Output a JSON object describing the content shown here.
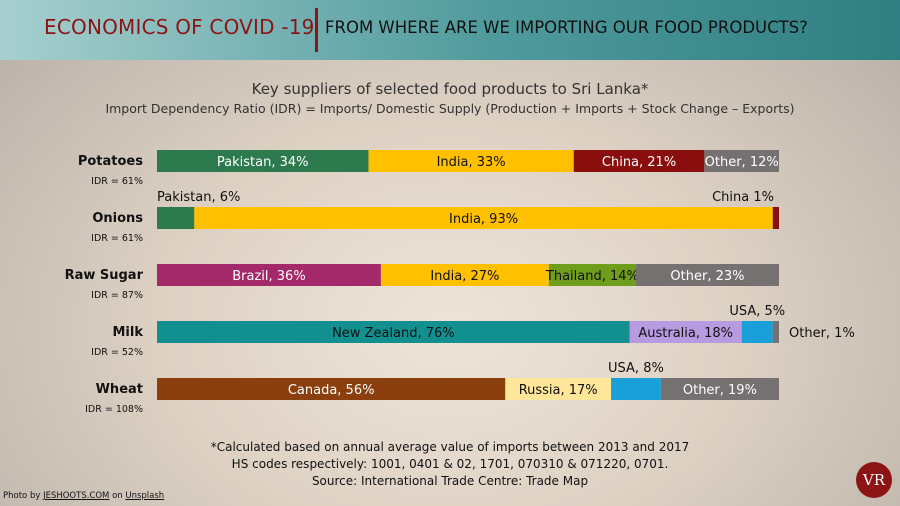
{
  "header": {
    "left_title": "ECONOMICS OF COVID -19",
    "right_title": "FROM WHERE ARE WE IMPORTING OUR FOOD PRODUCTS?"
  },
  "chart_data": {
    "type": "bar",
    "orientation": "horizontal",
    "stacked": true,
    "title": "Key suppliers of selected food products to Sri Lanka*",
    "subtitle": "Import Dependency Ratio (IDR) = Imports/ Domestic Supply (Production + Imports + Stock Change – Exports)",
    "categories": [
      "Potatoes",
      "Onions",
      "Raw Sugar",
      "Milk",
      "Wheat"
    ],
    "idr_labels": [
      "IDR = 61%",
      "IDR = 61%",
      "IDR = 87%",
      "IDR = 52%",
      "IDR = 108%"
    ],
    "rows": [
      {
        "category": "Potatoes",
        "segments": [
          {
            "label": "Pakistan, 34%",
            "value": 34,
            "color": "#2d7a4f"
          },
          {
            "label": "India, 33%",
            "value": 33,
            "color": "#ffc000"
          },
          {
            "label": "China, 21%",
            "value": 21,
            "color": "#8b0e0e"
          },
          {
            "label": "Other, 12%",
            "value": 12,
            "color": "#767171"
          }
        ]
      },
      {
        "category": "Onions",
        "segments": [
          {
            "label": "Pakistan, 6%",
            "value": 6,
            "color": "#2d7a4f"
          },
          {
            "label": "India, 93%",
            "value": 93,
            "color": "#ffc000"
          },
          {
            "label": "China  1%",
            "value": 1,
            "color": "#8b0e0e"
          }
        ]
      },
      {
        "category": "Raw Sugar",
        "segments": [
          {
            "label": "Brazil, 36%",
            "value": 36,
            "color": "#a3296b"
          },
          {
            "label": "India, 27%",
            "value": 27,
            "color": "#ffc000"
          },
          {
            "label": "Thailand, 14%",
            "value": 14,
            "color": "#6f9e1d"
          },
          {
            "label": "Other, 23%",
            "value": 23,
            "color": "#767171"
          }
        ]
      },
      {
        "category": "Milk",
        "segments": [
          {
            "label": "New Zealand, 76%",
            "value": 76,
            "color": "#129090"
          },
          {
            "label": "Australia, 18%",
            "value": 18,
            "color": "#b79ae0"
          },
          {
            "label": "USA, 5%",
            "value": 5,
            "color": "#1aa0d8"
          },
          {
            "label": "Other, 1%",
            "value": 1,
            "color": "#767171"
          }
        ]
      },
      {
        "category": "Wheat",
        "segments": [
          {
            "label": "Canada, 56%",
            "value": 56,
            "color": "#8b3e0e"
          },
          {
            "label": "Russia, 17%",
            "value": 17,
            "color": "#ffe699"
          },
          {
            "label": "USA, 8%",
            "value": 8,
            "color": "#1aa0d8"
          },
          {
            "label": "Other, 19%",
            "value": 19,
            "color": "#767171"
          }
        ]
      }
    ]
  },
  "footnotes": [
    "*Calculated based on annual average value of imports between 2013 and 2017",
    "HS codes respectively: 1001, 0401 & 02, 1701, 070310 & 071220, 0701.",
    "Source: International Trade Centre: Trade Map"
  ],
  "credit": {
    "prefix": "Photo by ",
    "author": "JESHOOTS.COM",
    "middle": " on ",
    "site": "Unsplash"
  },
  "logo_text": "VR"
}
